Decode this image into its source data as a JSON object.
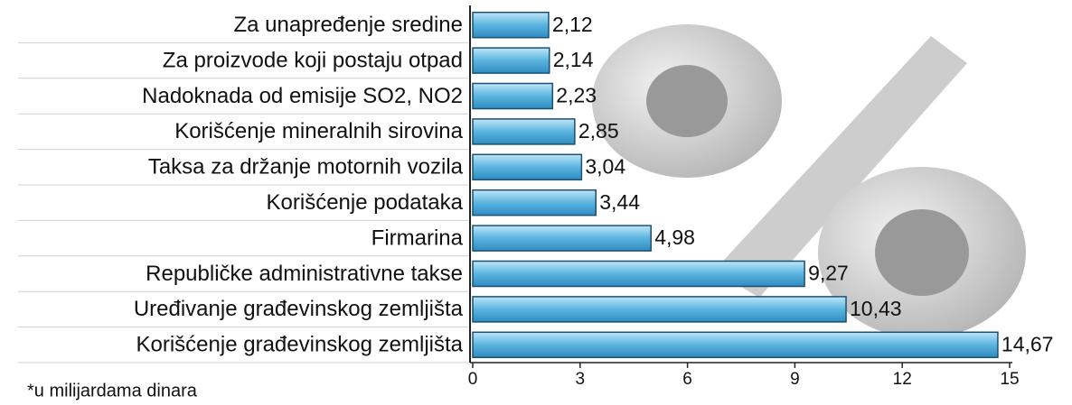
{
  "chart_data": {
    "type": "hbar",
    "categories": [
      "Za unapređenje sredine",
      "Za proizvode koji postaju otpad",
      "Nadoknada od emisije SO2, NO2",
      "Korišćenje mineralnih sirovina",
      "Taksa za držanje motornih vozila",
      "Korišćenje podataka",
      "Firmarina",
      "Republičke administrativne takse",
      "Uređivanje građevinskog zemljišta",
      "Korišćenje građevinskog zemljišta"
    ],
    "values": [
      2.12,
      2.14,
      2.23,
      2.85,
      3.04,
      3.44,
      4.98,
      9.27,
      10.43,
      14.67
    ],
    "value_labels": [
      "2,12",
      "2,14",
      "2,23",
      "2,85",
      "3,04",
      "3,44",
      "4,98",
      "9,27",
      "10,43",
      "14,67"
    ],
    "color": "#5ab4e0",
    "xlim": [
      0,
      15
    ],
    "xticks": [
      0,
      3,
      6,
      9,
      12,
      15
    ],
    "note": "*u milijardama dinara"
  }
}
